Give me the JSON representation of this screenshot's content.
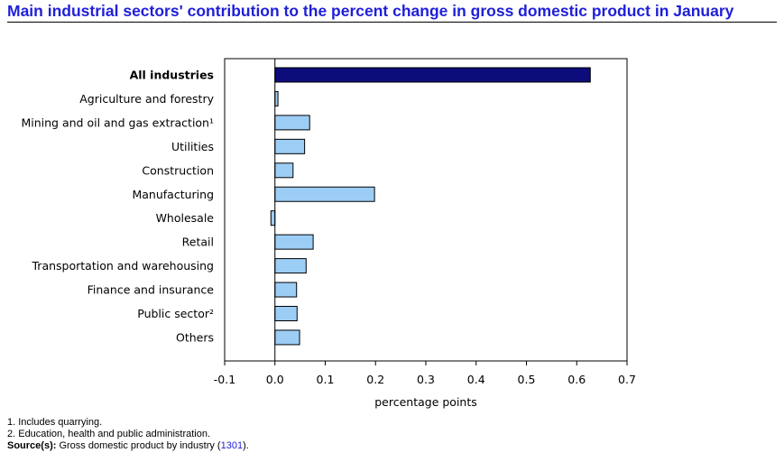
{
  "title": "Main industrial sectors' contribution to the percent change in gross domestic product in January",
  "chart_data": {
    "type": "bar",
    "orientation": "horizontal",
    "categories": [
      "All industries",
      "Agriculture and forestry",
      "Mining and oil and gas extraction¹",
      "Utilities",
      "Construction",
      "Manufacturing",
      "Wholesale",
      "Retail",
      "Transportation and warehousing",
      "Finance and insurance",
      "Public sector²",
      "Others"
    ],
    "values": [
      0.627,
      0.006,
      0.069,
      0.059,
      0.036,
      0.198,
      -0.008,
      0.076,
      0.062,
      0.043,
      0.044,
      0.049
    ],
    "highlight": "All industries",
    "xlabel": "percentage points",
    "xlim": [
      -0.1,
      0.7
    ],
    "xticks": [
      "-0.1",
      "0.0",
      "0.1",
      "0.2",
      "0.3",
      "0.4",
      "0.5",
      "0.6",
      "0.7"
    ],
    "grid": false,
    "colors": {
      "highlight": "#0c0c7a",
      "bar": "#9ccdf5",
      "outline": "#000000"
    }
  },
  "notes": {
    "note1": "1. Includes quarrying.",
    "note2": "2. Education, health and public administration.",
    "source_label": "Source(s):",
    "source_text": " Gross domestic product by industry (",
    "source_link": "1301",
    "source_end": ")."
  }
}
